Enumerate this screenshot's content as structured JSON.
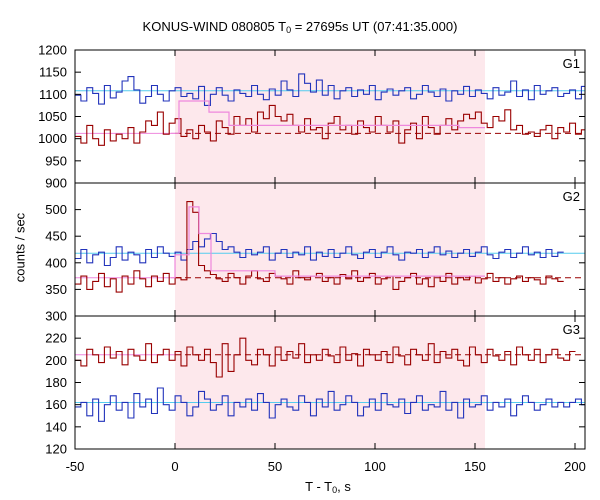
{
  "title": {
    "instrument": "KONUS-WIND 080805 T",
    "t0_sub": "0",
    "rest": " = 27695s UT (07:41:35.000)"
  },
  "xlabel": {
    "main": "T - T",
    "sub": "0",
    "tail": ", s"
  },
  "ylabel": "counts / sec",
  "colors": {
    "blue": "#2233bb",
    "red": "#990000",
    "cyan": "#55ccee",
    "pink": "#ee88dd",
    "shade": "#fde8ec"
  },
  "chart_data": {
    "type": "line",
    "x_ticks": [
      -50,
      0,
      50,
      100,
      150,
      200
    ],
    "xlim": [
      -50,
      205
    ],
    "shaded_interval": [
      0,
      155
    ],
    "bin_width": 2.944,
    "panels": [
      {
        "label": "G1",
        "ylim": [
          900,
          1200
        ],
        "y_ticks": [
          900,
          950,
          1000,
          1050,
          1100,
          1150,
          1200
        ],
        "y_tick_labels": [
          "900",
          "950",
          "1000",
          "1050",
          "1100",
          "1150",
          "1200"
        ],
        "blue_baseline": 1108,
        "red_baseline": 1012,
        "series": [
          {
            "color": "blue",
            "start": -50,
            "values": [
              1098,
              1085,
              1115,
              1102,
              1078,
              1120,
              1092,
              1105,
              1130,
              1140,
              1110,
              1080,
              1095,
              1120,
              1100,
              1085,
              1108,
              1115,
              1095,
              1102,
              1090,
              1118,
              1075,
              1100,
              1115,
              1098,
              1085,
              1110,
              1102,
              1095,
              1120,
              1100,
              1088,
              1112,
              1098,
              1130,
              1110,
              1095,
              1146,
              1125,
              1105,
              1132,
              1098,
              1120,
              1090,
              1108,
              1115,
              1095,
              1110,
              1100,
              1120,
              1088,
              1105,
              1112,
              1098,
              1108,
              1115,
              1090,
              1100,
              1120,
              1105,
              1095,
              1112,
              1085,
              1108,
              1100,
              1118,
              1095,
              1110,
              1102,
              1090,
              1115,
              1098,
              1105,
              1130,
              1095,
              1110,
              1088,
              1120,
              1100,
              1108,
              1115,
              1095,
              1102,
              1110,
              1090,
              1118,
              1100,
              1105
            ]
          },
          {
            "color": "red",
            "start": -50,
            "values": [
              1005,
              990,
              1030,
              1000,
              985,
              1020,
              995,
              1010,
              1000,
              1025,
              990,
              1015,
              1040,
              1030,
              1060,
              1010,
              1035,
              1045,
              1005,
              1020,
              1000,
              1030,
              1015,
              995,
              1040,
              1025,
              1010,
              1050,
              1030,
              1045,
              1015,
              1060,
              1045,
              1075,
              1050,
              1040,
              1055,
              1030,
              1015,
              1045,
              1020,
              1025,
              1000,
              1035,
              1050,
              1020,
              1030,
              1010,
              1040,
              1025,
              1015,
              1050,
              1030,
              1015,
              1040,
              990,
              1020,
              1035,
              1000,
              1050,
              1025,
              1010,
              1030,
              1045,
              1020,
              1040,
              1055,
              1045,
              1060,
              1035,
              1025,
              1050,
              1040,
              1065,
              1020,
              1030,
              1010,
              1015,
              1005,
              1020,
              1030,
              1000,
              1025,
              1015,
              1035,
              1010,
              1020,
              1030,
              1015
            ]
          },
          {
            "color": "pink",
            "start": -50,
            "values": []
          }
        ],
        "pink_segments": [
          {
            "x": [
              -2,
              2,
              2,
              17,
              17,
              27,
              27,
              142,
              142,
              155
            ],
            "y": [
              1012,
              1012,
              1085,
              1085,
              1060,
              1060,
              1030,
              1030,
              1025,
              1025
            ]
          }
        ]
      },
      {
        "label": "G2",
        "ylim": [
          300,
          550
        ],
        "y_ticks": [
          300,
          350,
          400,
          450,
          500
        ],
        "y_tick_labels": [
          "300",
          "350",
          "400",
          "450",
          "500"
        ],
        "blue_baseline": 418,
        "red_baseline": 372,
        "series": [
          {
            "color": "blue",
            "start": -50,
            "values": [
              408,
              425,
              400,
              415,
              420,
              395,
              410,
              430,
              405,
              420,
              415,
              400,
              425,
              410,
              430,
              418,
              412,
              420,
              405,
              425,
              440,
              430,
              445,
              455,
              440,
              425,
              430,
              420,
              410,
              425,
              415,
              420,
              430,
              405,
              418,
              425,
              410,
              420,
              415,
              430,
              405,
              420,
              412,
              425,
              410,
              418,
              430,
              415,
              408,
              420,
              425,
              410,
              420,
              430,
              415,
              405,
              420,
              418,
              425,
              410,
              420,
              430,
              415,
              422,
              410,
              418,
              425,
              412,
              420,
              430,
              415,
              408,
              420,
              425,
              410,
              418,
              430,
              415,
              420,
              410,
              425,
              412,
              420
            ]
          },
          {
            "color": "red",
            "start": -50,
            "values": [
              360,
              375,
              350,
              365,
              380,
              355,
              370,
              345,
              375,
              360,
              385,
              370,
              355,
              375,
              365,
              380,
              360,
              372,
              368,
              515,
              495,
              395,
              385,
              378,
              370,
              365,
              380,
              372,
              360,
              375,
              385,
              370,
              365,
              380,
              375,
              370,
              360,
              385,
              372,
              368,
              375,
              380,
              365,
              372,
              360,
              378,
              370,
              385,
              365,
              372,
              380,
              360,
              370,
              375,
              350,
              365,
              372,
              380,
              360,
              370,
              355,
              375,
              365,
              380,
              360,
              372,
              368,
              375,
              362,
              370,
              380,
              365,
              372,
              360,
              370,
              375,
              365,
              372,
              368,
              360,
              375,
              370,
              365
            ]
          }
        ],
        "pink_segments": [
          {
            "x": [
              -2,
              0,
              0,
              7,
              7,
              12,
              12,
              18,
              18,
              50,
              50,
              155
            ],
            "y": [
              372,
              372,
              415,
              415,
              505,
              505,
              455,
              455,
              385,
              385,
              375,
              375
            ]
          }
        ]
      },
      {
        "label": "G3",
        "ylim": [
          120,
          240
        ],
        "y_ticks": [
          120,
          140,
          160,
          180,
          200,
          220
        ],
        "y_tick_labels": [
          "120",
          "140",
          "160",
          "180",
          "200",
          "220"
        ],
        "blue_baseline": 162,
        "red_baseline": 205,
        "series": [
          {
            "color": "blue",
            "start": -50,
            "values": [
              158,
              162,
              150,
              165,
              145,
              160,
              168,
              155,
              162,
              148,
              170,
              158,
              165,
              152,
              175,
              160,
              155,
              168,
              162,
              150,
              158,
              172,
              165,
              155,
              160,
              168,
              150,
              162,
              158,
              165,
              155,
              170,
              162,
              148,
              160,
              165,
              158,
              155,
              168,
              162,
              150,
              165,
              158,
              172,
              155,
              160,
              168,
              162,
              150,
              158,
              165,
              155,
              170,
              160,
              158,
              165,
              152,
              162,
              168,
              155,
              160,
              158,
              172,
              155,
              162,
              148,
              165,
              158,
              160,
              168,
              155,
              162,
              158,
              165,
              150,
              160,
              168,
              162,
              155,
              160,
              165,
              158,
              162,
              158,
              162,
              165,
              160,
              155,
              162
            ]
          },
          {
            "color": "red",
            "start": -50,
            "values": [
              200,
              195,
              210,
              205,
              198,
              212,
              202,
              208,
              196,
              210,
              204,
              200,
              215,
              198,
              205,
              210,
              200,
              208,
              195,
              212,
              205,
              200,
              210,
              198,
              185,
              215,
              190,
              205,
              220,
              200,
              196,
              210,
              205,
              195,
              212,
              200,
              208,
              202,
              215,
              198,
              205,
              200,
              210,
              204,
              198,
              212,
              200,
              206,
              195,
              210,
              205,
              200,
              208,
              198,
              212,
              204,
              196,
              210,
              205,
              200,
              215,
              198,
              208,
              202,
              210,
              200,
              195,
              212,
              205,
              198,
              210,
              204,
              200,
              208,
              196,
              212,
              205,
              200,
              210,
              198,
              205,
              210,
              202,
              200,
              208
            ]
          }
        ],
        "pink_segments": []
      }
    ]
  }
}
